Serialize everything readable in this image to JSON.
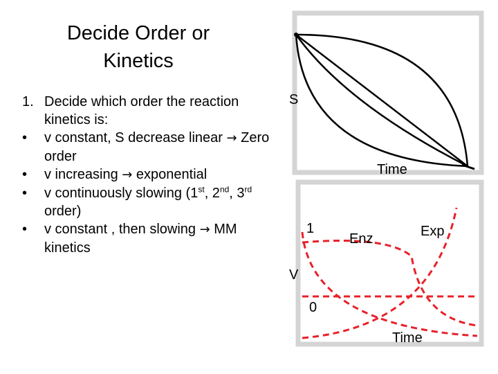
{
  "title": {
    "line1": "Decide Order or",
    "line2": "Kinetics"
  },
  "bullets": {
    "main_number": "1.",
    "main_text": "Decide which order the reaction kinetics is:",
    "items": [
      {
        "marker": "•",
        "pre": "v constant, S decrease linear ",
        "post": " Zero order"
      },
      {
        "marker": "•",
        "pre": "v increasing ",
        "post": " exponential"
      },
      {
        "marker": "•",
        "pre": "v continuously slowing (1",
        "sup1": "st",
        "mid1": ", 2",
        "sup2": "nd",
        "mid2": ", 3",
        "sup3": "rd",
        "post": " order)"
      },
      {
        "marker": "•",
        "pre": "v constant , then slowing ",
        "post": " MM kinetics"
      }
    ]
  },
  "top_plot": {
    "y_label": "S",
    "x_label": "Time"
  },
  "bottom_plot": {
    "y_label": "V",
    "x_label": "Time",
    "curve_label_first": "1",
    "curve_label_zero": "0",
    "curve_label_enz": "Enz",
    "curve_label_exp": "Exp"
  },
  "colors": {
    "panel_border": "#d4d4d4",
    "curve_black": "#000000",
    "curve_red": "#e8202a"
  }
}
